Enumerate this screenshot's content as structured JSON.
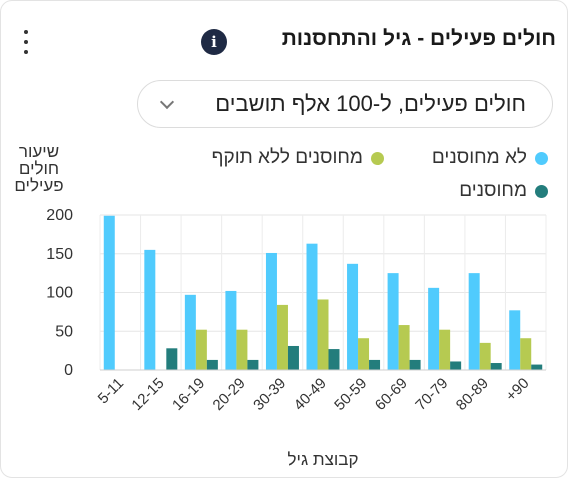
{
  "header": {
    "title": "חולים פעילים - גיל והתחסנות",
    "info_icon": "info-icon",
    "menu_icon": "more-vertical-icon"
  },
  "selector": {
    "value": "חולים פעילים, ל-100 אלף תושבים",
    "icon": "chevron-down-icon"
  },
  "chart_data": {
    "type": "bar",
    "ylabel": "שיעור חולים פעילים",
    "xlabel": "קבוצת גיל",
    "categories": [
      "5-11",
      "12-15",
      "16-19",
      "20-29",
      "30-39",
      "40-49",
      "50-59",
      "60-69",
      "70-79",
      "80-89",
      "+90"
    ],
    "ylim": [
      0,
      200
    ],
    "yticks": [
      0,
      50,
      100,
      150,
      200
    ],
    "grid": true,
    "legend_position": "top",
    "series": [
      {
        "name": "לא מחוסנים",
        "color": "#50cbfd",
        "values": [
          199,
          155,
          97,
          102,
          151,
          163,
          137,
          125,
          106,
          125,
          77
        ]
      },
      {
        "name": "מחוסנים ללא תוקף",
        "color": "#b6ca51",
        "values": [
          0,
          0,
          52,
          52,
          84,
          91,
          41,
          58,
          52,
          35,
          41
        ]
      },
      {
        "name": "מחוסנים",
        "color": "#237d7c",
        "values": [
          0,
          28,
          13,
          13,
          31,
          27,
          13,
          13,
          11,
          9,
          7
        ]
      }
    ]
  }
}
